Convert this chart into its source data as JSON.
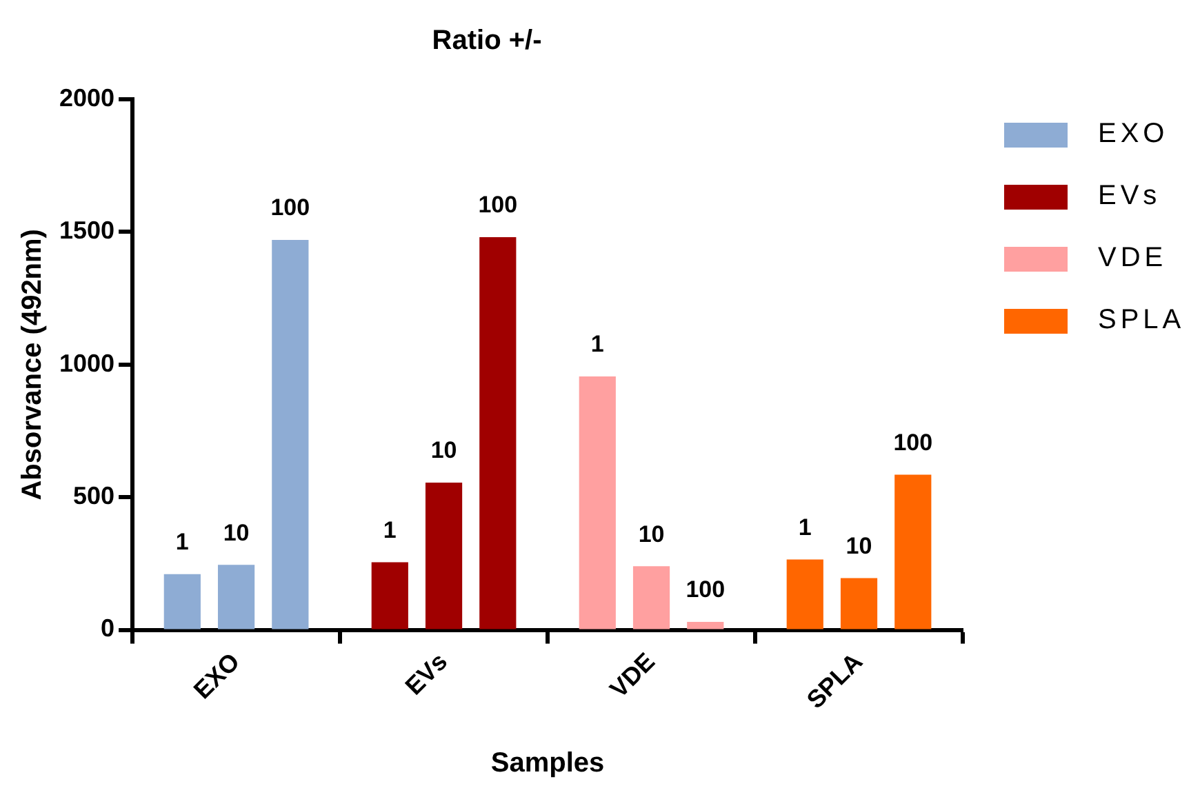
{
  "chart_data": {
    "type": "bar",
    "title": "Ratio +/-",
    "xlabel": "Samples",
    "ylabel": "Absorvance (492nm)",
    "categories": [
      "EXO",
      "EVs",
      "VDE",
      "SPLA"
    ],
    "series": [
      {
        "colors": [
          "#8eacd4",
          "#a00000",
          "#ffa0a0",
          "#ff6600"
        ],
        "values": [
          210,
          255,
          955,
          265
        ]
      },
      {
        "colors": [
          "#8eacd4",
          "#a00000",
          "#ffa0a0",
          "#ff6600"
        ],
        "values": [
          245,
          555,
          240,
          195
        ]
      },
      {
        "colors": [
          "#8eacd4",
          "#a00000",
          "#ffa0a0",
          "#ff6600"
        ],
        "values": [
          1470,
          1480,
          30,
          585
        ]
      }
    ],
    "annotations": [
      "1",
      "10",
      "100",
      "1",
      "10",
      "100",
      "1",
      "10",
      "100",
      "1",
      "10",
      "100"
    ],
    "ylim": [
      0,
      2000
    ],
    "yticks": [
      0,
      500,
      1000,
      1500,
      2000
    ],
    "grid": false
  }
}
